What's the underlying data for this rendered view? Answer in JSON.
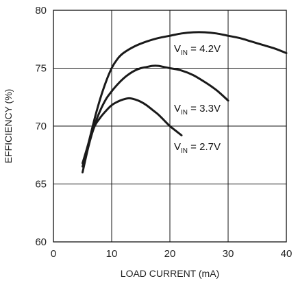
{
  "chart_data": {
    "type": "line",
    "xlabel": "LOAD CURRENT (mA)",
    "ylabel": "EFFICIENCY (%)",
    "xlim": [
      0,
      40
    ],
    "ylim": [
      60,
      80
    ],
    "x_ticks": [
      0,
      10,
      20,
      30,
      40
    ],
    "y_ticks": [
      60,
      65,
      70,
      75,
      80
    ],
    "grid": true,
    "series": [
      {
        "label_main": "V",
        "label_sub": "IN",
        "label_rest": " = 4.2V",
        "x": [
          5,
          6,
          7,
          8,
          9,
          10,
          11,
          12,
          14,
          16,
          18,
          20,
          22,
          24,
          26,
          28,
          30,
          32,
          34,
          36,
          38,
          40
        ],
        "y": [
          66.8,
          68.5,
          70.5,
          72.3,
          73.8,
          75.0,
          75.8,
          76.3,
          76.9,
          77.3,
          77.6,
          77.8,
          78.0,
          78.1,
          78.1,
          78.0,
          77.8,
          77.6,
          77.3,
          77.0,
          76.7,
          76.3
        ]
      },
      {
        "label_main": "V",
        "label_sub": "IN",
        "label_rest": " = 3.3V",
        "x": [
          5,
          6,
          7,
          8,
          9,
          10,
          11,
          12,
          13,
          14,
          15,
          16,
          17,
          18,
          19,
          20,
          22,
          24,
          26,
          28,
          30
        ],
        "y": [
          66.5,
          68.3,
          70.0,
          71.3,
          72.3,
          73.0,
          73.6,
          74.1,
          74.5,
          74.8,
          75.0,
          75.1,
          75.2,
          75.2,
          75.1,
          75.0,
          74.8,
          74.4,
          73.8,
          73.1,
          72.2
        ]
      },
      {
        "label_main": "V",
        "label_sub": "IN",
        "label_rest": " = 2.7V",
        "x": [
          5,
          6,
          7,
          8,
          9,
          10,
          11,
          12,
          13,
          14,
          15,
          16,
          17,
          18,
          19,
          20,
          21,
          22
        ],
        "y": [
          66.0,
          68.2,
          69.9,
          70.7,
          71.3,
          71.8,
          72.1,
          72.3,
          72.4,
          72.3,
          72.1,
          71.8,
          71.4,
          71.0,
          70.5,
          70.0,
          69.6,
          69.2
        ]
      }
    ]
  }
}
